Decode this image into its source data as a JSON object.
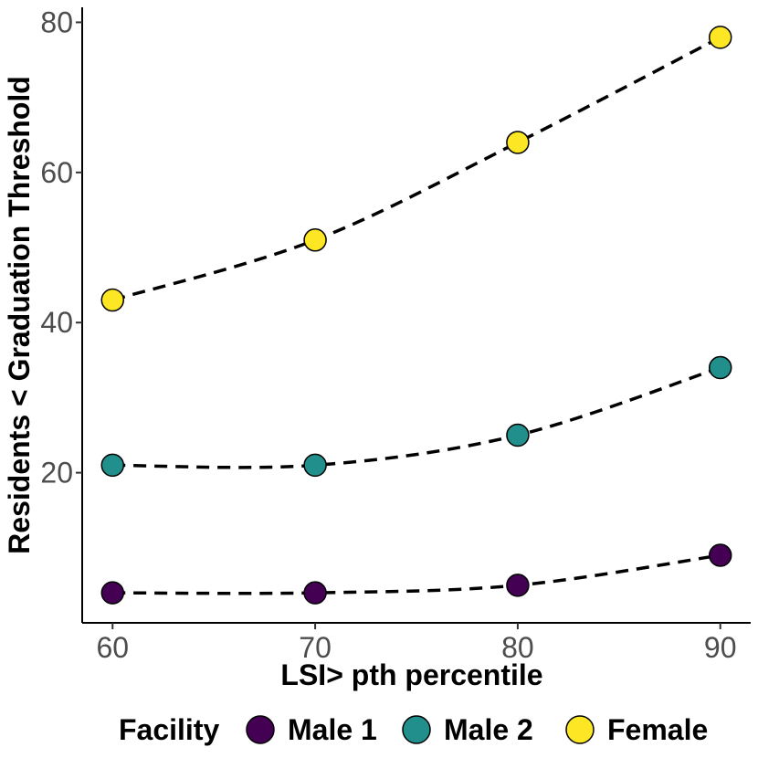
{
  "chart_data": {
    "type": "line",
    "title": "",
    "xlabel": "LSI> pth percentile",
    "ylabel": "Residents < Graduation Threshold",
    "x": [
      60,
      70,
      80,
      90
    ],
    "xticks": [
      60,
      70,
      80,
      90
    ],
    "yticks": [
      20,
      40,
      60,
      80
    ],
    "xlim": [
      58.5,
      91.5
    ],
    "ylim": [
      0,
      82
    ],
    "grid": false,
    "line_style": "dashed",
    "legend": {
      "title": "Facility",
      "position": "bottom"
    },
    "series": [
      {
        "name": "Male 1",
        "color": "#440154",
        "values": [
          4,
          4,
          5,
          9
        ]
      },
      {
        "name": "Male 2",
        "color": "#21908c",
        "values": [
          21,
          21,
          25,
          34
        ]
      },
      {
        "name": "Female",
        "color": "#fde725",
        "values": [
          43,
          51,
          64,
          78
        ]
      }
    ]
  }
}
